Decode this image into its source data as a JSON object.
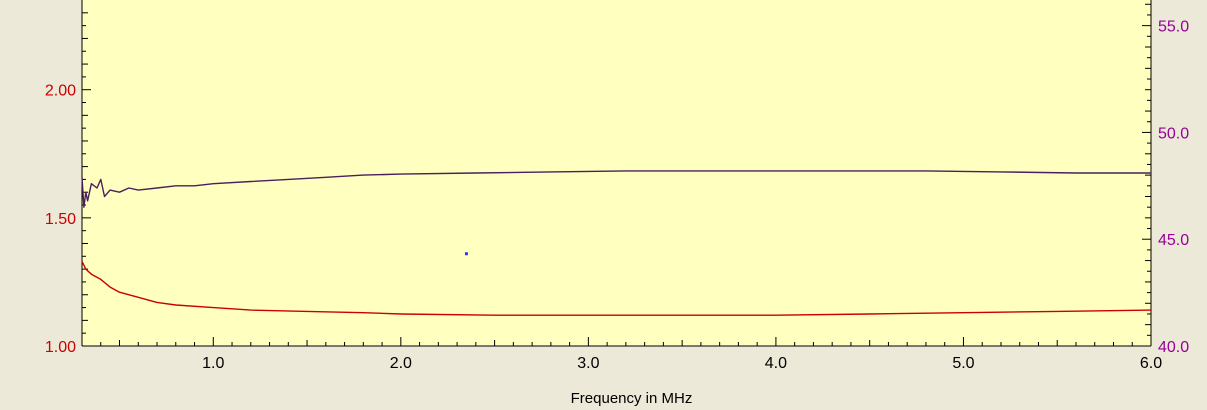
{
  "chart_data": {
    "type": "line",
    "xlabel": "Frequency in MHz",
    "xlim": [
      0.3,
      6.0
    ],
    "x_ticks": [
      "1.0",
      "2.0",
      "3.0",
      "4.0",
      "5.0",
      "6.0"
    ],
    "y_left": {
      "ylim": [
        1.0,
        2.35
      ],
      "ticks": [
        "1.00",
        "1.50",
        "2.00"
      ],
      "color": "#CC0000"
    },
    "y_right": {
      "ylim": [
        40.0,
        56.2
      ],
      "ticks": [
        "40.0",
        "45.0",
        "50.0",
        "55.0"
      ],
      "color": "#990099"
    },
    "colors": {
      "plot_bg": "#FFFFC0",
      "frame_bg": "#ECE9D8",
      "series_red": "#CC0000",
      "series_purple": "#4B1F5C",
      "marker": "#3333FF"
    },
    "series": [
      {
        "axis": "right",
        "color": "#4B1F5C",
        "x": [
          0.3,
          0.31,
          0.32,
          0.33,
          0.35,
          0.38,
          0.4,
          0.42,
          0.45,
          0.5,
          0.55,
          0.6,
          0.7,
          0.8,
          0.9,
          1.0,
          1.2,
          1.4,
          1.6,
          1.8,
          2.0,
          2.4,
          2.8,
          3.2,
          3.6,
          4.0,
          4.4,
          4.8,
          5.2,
          5.6,
          6.0
        ],
        "values": [
          47.9,
          46.5,
          47.2,
          46.8,
          47.6,
          47.4,
          47.8,
          47.0,
          47.3,
          47.2,
          47.4,
          47.3,
          47.4,
          47.5,
          47.5,
          47.6,
          47.7,
          47.8,
          47.9,
          48.0,
          48.05,
          48.1,
          48.15,
          48.2,
          48.2,
          48.2,
          48.2,
          48.2,
          48.15,
          48.1,
          48.1
        ]
      },
      {
        "axis": "left",
        "color": "#CC0000",
        "x": [
          0.3,
          0.32,
          0.35,
          0.4,
          0.45,
          0.5,
          0.6,
          0.7,
          0.8,
          1.0,
          1.2,
          1.5,
          1.8,
          2.0,
          2.5,
          3.0,
          3.5,
          4.0,
          4.5,
          5.0,
          5.5,
          6.0
        ],
        "values": [
          1.33,
          1.3,
          1.28,
          1.26,
          1.23,
          1.21,
          1.19,
          1.17,
          1.16,
          1.15,
          1.14,
          1.135,
          1.13,
          1.125,
          1.12,
          1.12,
          1.12,
          1.12,
          1.125,
          1.13,
          1.135,
          1.14
        ]
      }
    ],
    "points": [
      {
        "axis": "left",
        "x": 2.35,
        "y": 1.36,
        "color": "#3333FF"
      }
    ]
  }
}
